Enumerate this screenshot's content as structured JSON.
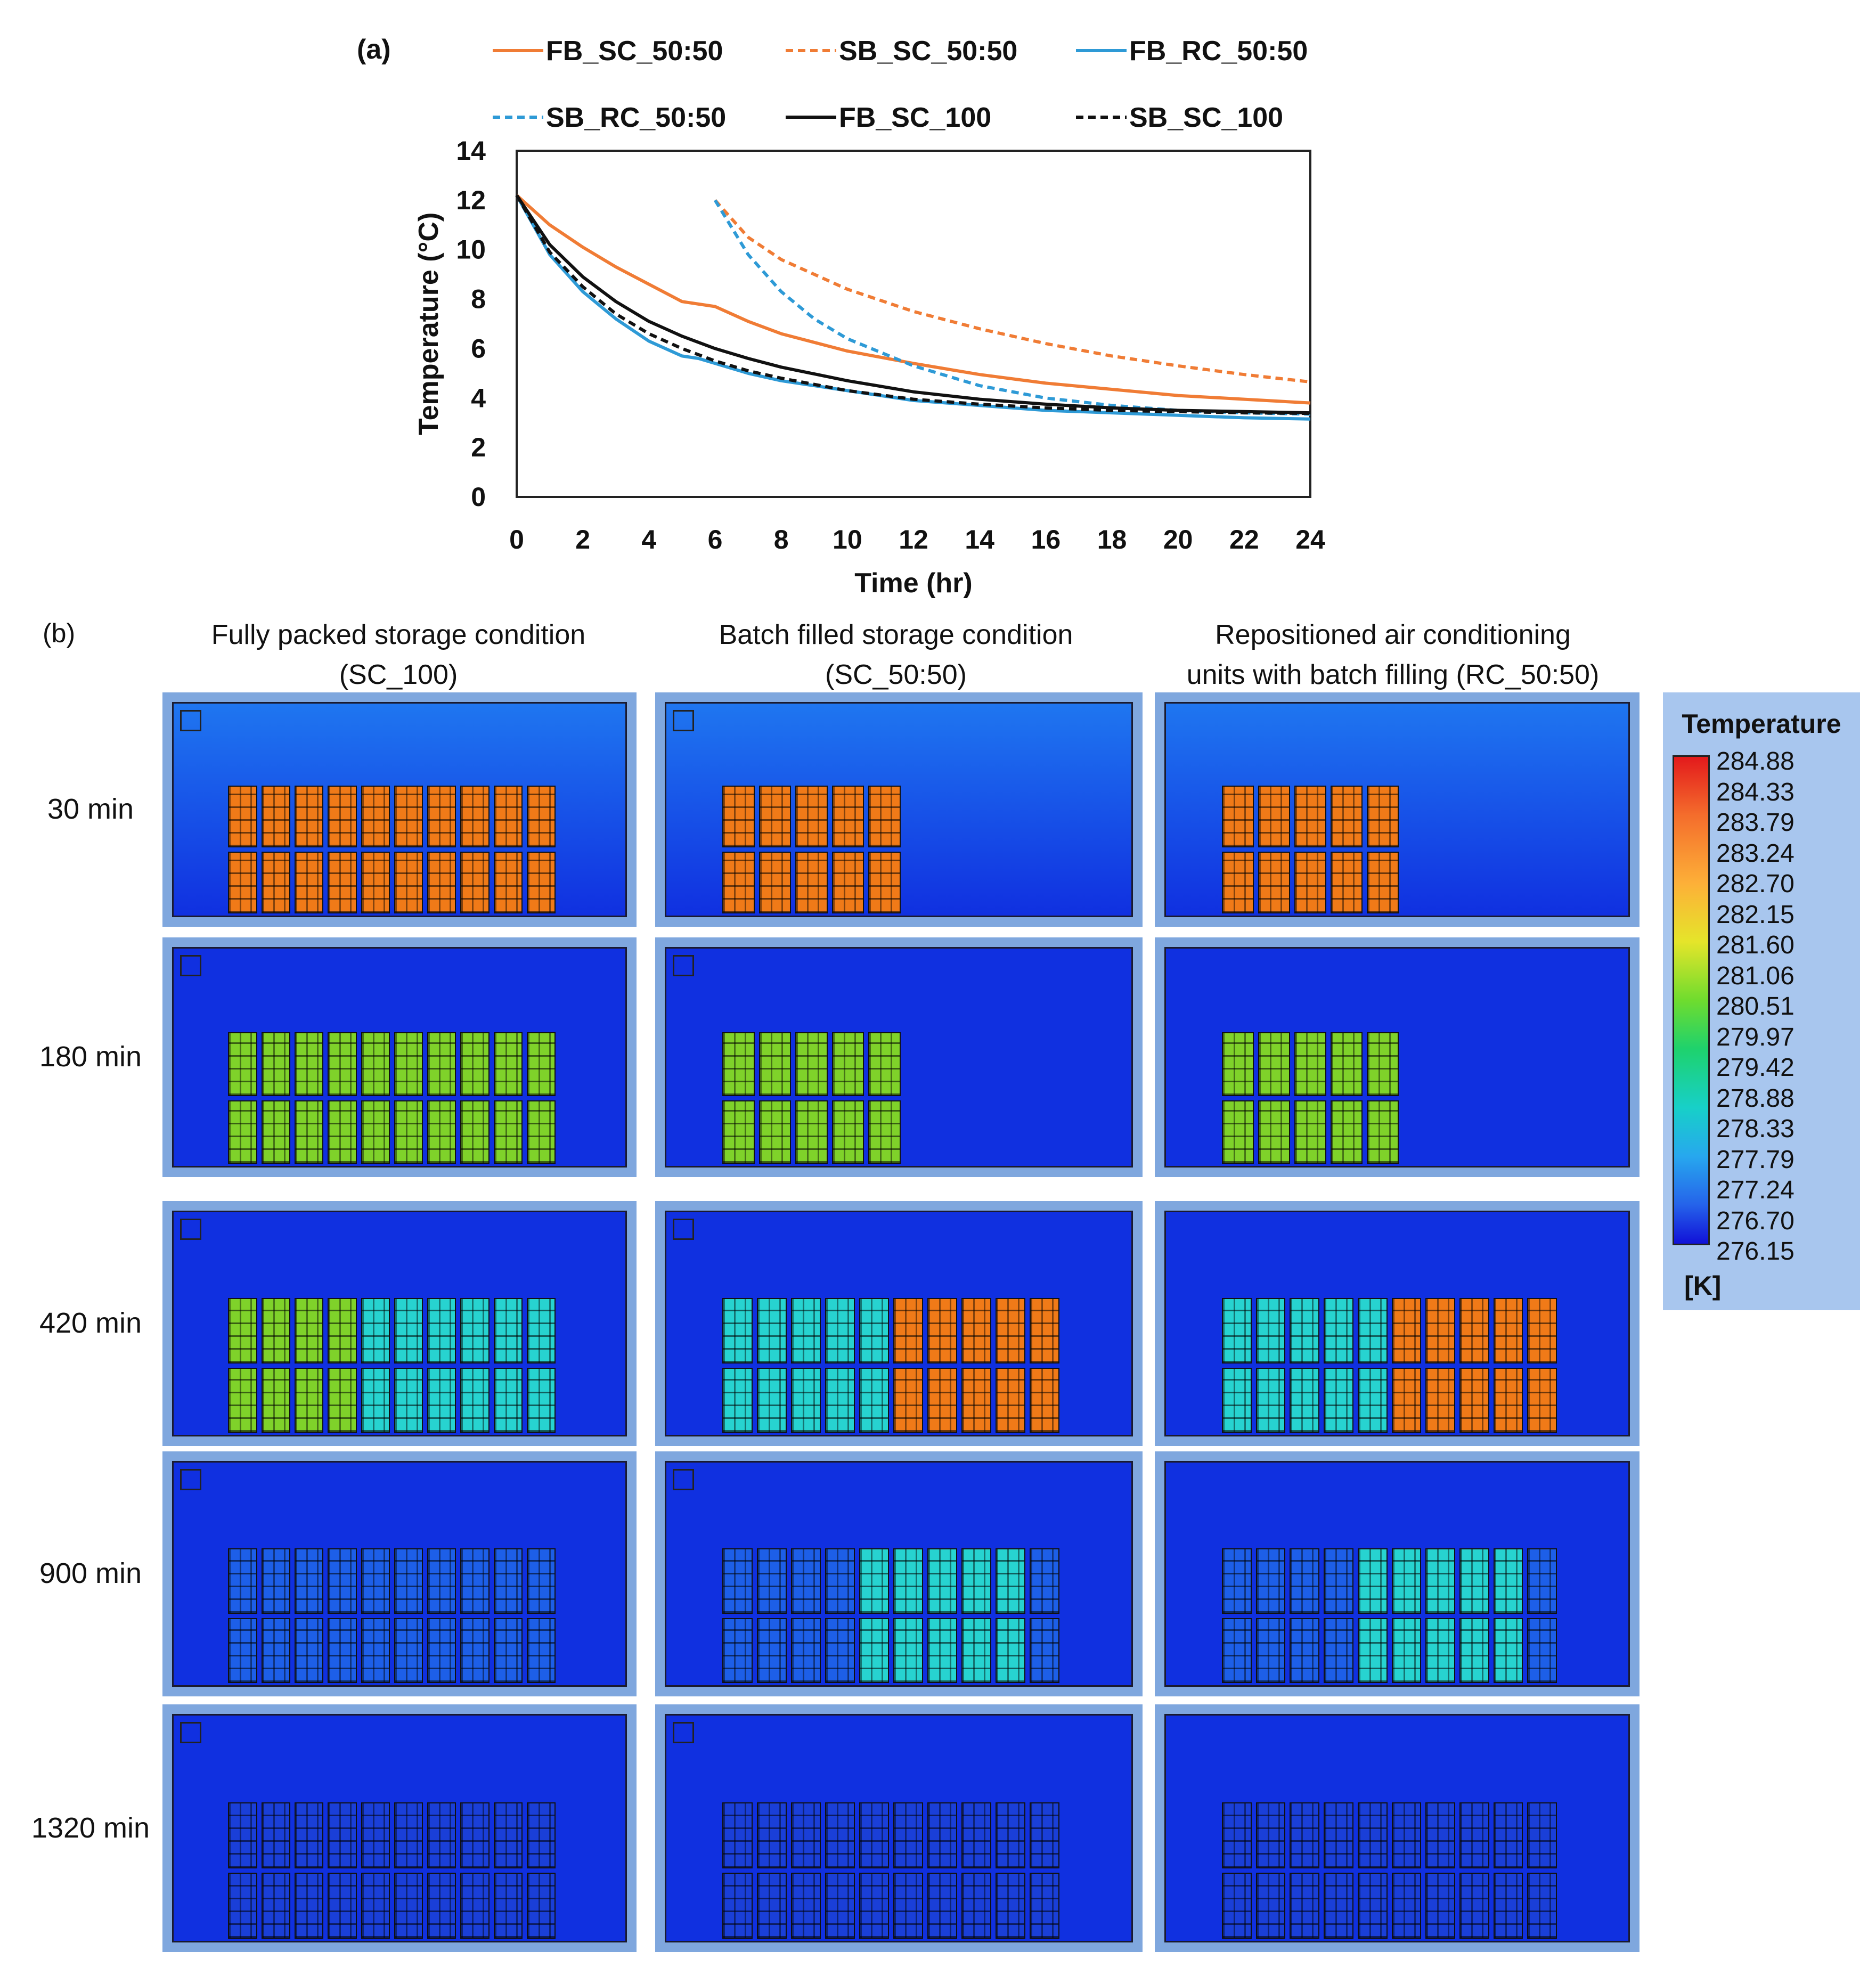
{
  "panel_a_label": "(a)",
  "panel_b_label": "(b)",
  "chart_data": {
    "type": "line",
    "title": "",
    "xlabel": "Time (hr)",
    "ylabel": "Temperature (°C)",
    "xlim": [
      0,
      24
    ],
    "ylim": [
      0,
      14
    ],
    "xticks": [
      0,
      2,
      4,
      6,
      8,
      10,
      12,
      14,
      16,
      18,
      20,
      22,
      24
    ],
    "yticks": [
      0,
      2,
      4,
      6,
      8,
      10,
      12,
      14
    ],
    "series": [
      {
        "name": "FB_SC_50:50",
        "color": "#f07c35",
        "dash": "solid",
        "x": [
          0,
          1,
          2,
          3,
          4,
          5,
          5.5,
          6,
          7,
          8,
          10,
          12,
          14,
          16,
          18,
          20,
          22,
          24
        ],
        "y": [
          12.2,
          11.0,
          10.1,
          9.3,
          8.6,
          7.9,
          7.8,
          7.7,
          7.1,
          6.6,
          5.9,
          5.4,
          4.95,
          4.6,
          4.35,
          4.1,
          3.95,
          3.8
        ]
      },
      {
        "name": "SB_SC_50:50",
        "color": "#f07c35",
        "dash": "dashed",
        "x": [
          6,
          7,
          8,
          10,
          12,
          14,
          16,
          18,
          20,
          22,
          24
        ],
        "y": [
          12.0,
          10.5,
          9.6,
          8.4,
          7.5,
          6.8,
          6.2,
          5.7,
          5.3,
          4.95,
          4.65
        ]
      },
      {
        "name": "FB_RC_50:50",
        "color": "#2e9ad6",
        "dash": "solid",
        "x": [
          0,
          1,
          2,
          3,
          4,
          5,
          5.5,
          6,
          7,
          8,
          10,
          12,
          14,
          16,
          18,
          20,
          22,
          24
        ],
        "y": [
          12.2,
          9.8,
          8.3,
          7.2,
          6.3,
          5.7,
          5.6,
          5.4,
          5.0,
          4.7,
          4.3,
          3.9,
          3.7,
          3.5,
          3.4,
          3.3,
          3.2,
          3.15
        ]
      },
      {
        "name": "SB_RC_50:50",
        "color": "#2e9ad6",
        "dash": "dashed",
        "x": [
          6,
          7,
          8,
          9,
          10,
          12,
          14,
          16,
          18,
          20,
          22,
          24
        ],
        "y": [
          12.0,
          9.8,
          8.3,
          7.2,
          6.4,
          5.3,
          4.5,
          4.0,
          3.7,
          3.5,
          3.4,
          3.35
        ]
      },
      {
        "name": "FB_SC_100",
        "color": "#111111",
        "dash": "solid",
        "x": [
          0,
          1,
          2,
          3,
          4,
          5,
          6,
          7,
          8,
          10,
          12,
          14,
          16,
          18,
          20,
          22,
          24
        ],
        "y": [
          12.2,
          10.2,
          8.9,
          7.9,
          7.1,
          6.5,
          6.0,
          5.6,
          5.25,
          4.7,
          4.25,
          3.95,
          3.75,
          3.6,
          3.5,
          3.45,
          3.4
        ]
      },
      {
        "name": "SB_SC_100",
        "color": "#111111",
        "dash": "dashed",
        "x": [
          0,
          1,
          2,
          3,
          4,
          5,
          6,
          7,
          8,
          10,
          12,
          14,
          16,
          18,
          20,
          22,
          24
        ],
        "y": [
          12.2,
          9.9,
          8.5,
          7.4,
          6.6,
          6.0,
          5.5,
          5.1,
          4.8,
          4.3,
          3.95,
          3.75,
          3.6,
          3.5,
          3.45,
          3.4,
          3.38
        ]
      }
    ]
  },
  "panel_b": {
    "columns": [
      {
        "title_line1": "Fully packed storage condition",
        "title_line2": "(SC_100)"
      },
      {
        "title_line1": "Batch filled storage condition",
        "title_line2": "(SC_50:50)"
      },
      {
        "title_line1": "Repositioned air conditioning",
        "title_line2": "units with batch filling (RC_50:50)"
      }
    ],
    "rows": [
      "30 min",
      "180 min",
      "420 min",
      "900 min",
      "1320 min"
    ],
    "colors": {
      "bg_light": "#1f76f0",
      "bg_dark": "#1030e0",
      "hot": "#f07a18",
      "warm": "#7fd22a",
      "cool": "#27d3d0",
      "cold": "#1d5fe8"
    }
  },
  "legend": {
    "title": "Temperature",
    "unit": "[K]",
    "ticks": [
      "284.88",
      "284.33",
      "283.79",
      "283.24",
      "282.70",
      "282.15",
      "281.60",
      "281.06",
      "280.51",
      "279.97",
      "279.42",
      "278.88",
      "278.33",
      "277.79",
      "277.24",
      "276.70",
      "276.15"
    ]
  }
}
